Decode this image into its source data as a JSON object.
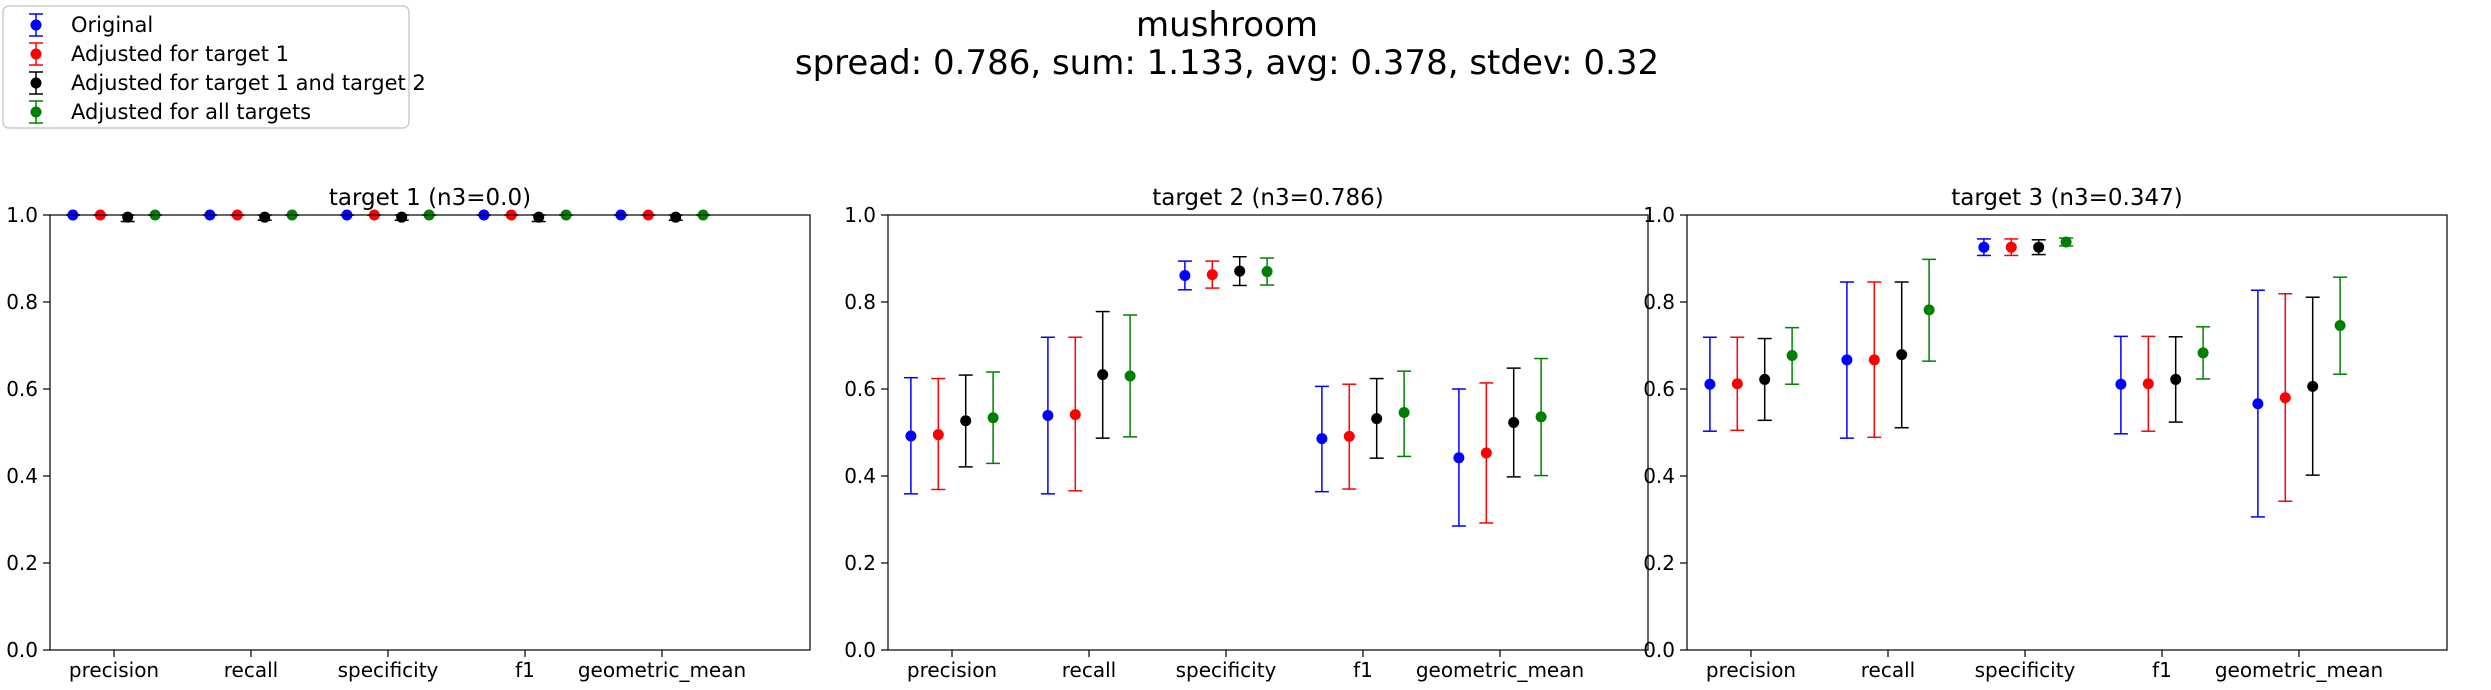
{
  "figure": {
    "title": "mushroom",
    "subtitle": "spread: 0.786, sum: 1.133, avg: 0.378, stdev: 0.32"
  },
  "legend": {
    "placement": "top-left, outside plots",
    "entries": [
      {
        "label": "Original",
        "color": "#0000ff"
      },
      {
        "label": "Adjusted for target 1",
        "color": "#ff0000"
      },
      {
        "label": "Adjusted for target 1 and target 2",
        "color": "#000000"
      },
      {
        "label": "Adjusted for all targets",
        "color": "#008000"
      }
    ]
  },
  "chart_data": [
    {
      "type": "scatter",
      "title": "target 1 (n3=0.0)",
      "categories": [
        "precision",
        "recall",
        "specificity",
        "f1",
        "geometric_mean"
      ],
      "ylim": [
        0,
        1.0
      ],
      "yticks": [
        "0.0",
        "0.2",
        "0.4",
        "0.6",
        "0.8",
        "1.0"
      ],
      "grid": false,
      "series": [
        {
          "name": "Original",
          "color": "#0000ff",
          "values": [
            1.0,
            1.0,
            1.0,
            1.0,
            1.0
          ],
          "err_low": [
            1.0,
            1.0,
            1.0,
            1.0,
            1.0
          ],
          "err_high": [
            1.0,
            1.0,
            1.0,
            1.0,
            1.0
          ]
        },
        {
          "name": "Adjusted for target 1",
          "color": "#ff0000",
          "values": [
            1.0,
            1.0,
            1.0,
            1.0,
            1.0
          ],
          "err_low": [
            1.0,
            1.0,
            1.0,
            1.0,
            1.0
          ],
          "err_high": [
            1.0,
            1.0,
            1.0,
            1.0,
            1.0
          ]
        },
        {
          "name": "Adjusted for target 1 and target 2",
          "color": "#000000",
          "values": [
            0.995,
            0.995,
            0.995,
            0.995,
            0.995
          ],
          "err_low": [
            0.985,
            0.988,
            0.988,
            0.985,
            0.988
          ],
          "err_high": [
            1.0,
            1.0,
            1.0,
            1.0,
            1.0
          ]
        },
        {
          "name": "Adjusted for all targets",
          "color": "#008000",
          "values": [
            1.0,
            1.0,
            1.0,
            1.0,
            1.0
          ],
          "err_low": [
            1.0,
            1.0,
            1.0,
            1.0,
            1.0
          ],
          "err_high": [
            1.0,
            1.0,
            1.0,
            1.0,
            1.0
          ]
        }
      ]
    },
    {
      "type": "scatter",
      "title": "target 2 (n3=0.786)",
      "categories": [
        "precision",
        "recall",
        "specificity",
        "f1",
        "geometric_mean"
      ],
      "ylim": [
        0,
        1.0
      ],
      "yticks": [
        "0.0",
        "0.2",
        "0.4",
        "0.6",
        "0.8",
        "1.0"
      ],
      "grid": false,
      "series": [
        {
          "name": "Original",
          "color": "#0000ff",
          "values": [
            0.492,
            0.539,
            0.861,
            0.486,
            0.442
          ],
          "err_low": [
            0.359,
            0.359,
            0.828,
            0.364,
            0.285
          ],
          "err_high": [
            0.626,
            0.719,
            0.894,
            0.606,
            0.6
          ]
        },
        {
          "name": "Adjusted for target 1",
          "color": "#ff0000",
          "values": [
            0.495,
            0.541,
            0.863,
            0.491,
            0.453
          ],
          "err_low": [
            0.369,
            0.366,
            0.832,
            0.37,
            0.292
          ],
          "err_high": [
            0.624,
            0.719,
            0.894,
            0.611,
            0.614
          ]
        },
        {
          "name": "Adjusted for target 1 and target 2",
          "color": "#000000",
          "values": [
            0.527,
            0.633,
            0.871,
            0.532,
            0.523
          ],
          "err_low": [
            0.421,
            0.487,
            0.838,
            0.441,
            0.398
          ],
          "err_high": [
            0.632,
            0.778,
            0.904,
            0.624,
            0.648
          ]
        },
        {
          "name": "Adjusted for all targets",
          "color": "#008000",
          "values": [
            0.534,
            0.63,
            0.87,
            0.546,
            0.536
          ],
          "err_low": [
            0.429,
            0.49,
            0.839,
            0.445,
            0.401
          ],
          "err_high": [
            0.639,
            0.77,
            0.901,
            0.641,
            0.67
          ]
        }
      ]
    },
    {
      "type": "scatter",
      "title": "target 3 (n3=0.347)",
      "categories": [
        "precision",
        "recall",
        "specificity",
        "f1",
        "geometric_mean"
      ],
      "ylim": [
        0,
        1.0
      ],
      "yticks": [
        "0.0",
        "0.2",
        "0.4",
        "0.6",
        "0.8",
        "1.0"
      ],
      "grid": false,
      "series": [
        {
          "name": "Original",
          "color": "#0000ff",
          "values": [
            0.611,
            0.667,
            0.926,
            0.611,
            0.566
          ],
          "err_low": [
            0.503,
            0.487,
            0.907,
            0.497,
            0.306
          ],
          "err_high": [
            0.719,
            0.846,
            0.945,
            0.721,
            0.827
          ]
        },
        {
          "name": "Adjusted for target 1",
          "color": "#ff0000",
          "values": [
            0.612,
            0.667,
            0.926,
            0.612,
            0.58
          ],
          "err_low": [
            0.505,
            0.489,
            0.907,
            0.503,
            0.342
          ],
          "err_high": [
            0.719,
            0.846,
            0.945,
            0.721,
            0.819
          ]
        },
        {
          "name": "Adjusted for target 1 and target 2",
          "color": "#000000",
          "values": [
            0.622,
            0.679,
            0.926,
            0.622,
            0.606
          ],
          "err_low": [
            0.528,
            0.511,
            0.909,
            0.524,
            0.402
          ],
          "err_high": [
            0.716,
            0.846,
            0.943,
            0.72,
            0.811
          ]
        },
        {
          "name": "Adjusted for all targets",
          "color": "#008000",
          "values": [
            0.677,
            0.782,
            0.938,
            0.683,
            0.746
          ],
          "err_low": [
            0.611,
            0.664,
            0.929,
            0.623,
            0.634
          ],
          "err_high": [
            0.741,
            0.898,
            0.947,
            0.743,
            0.857
          ]
        }
      ]
    }
  ]
}
